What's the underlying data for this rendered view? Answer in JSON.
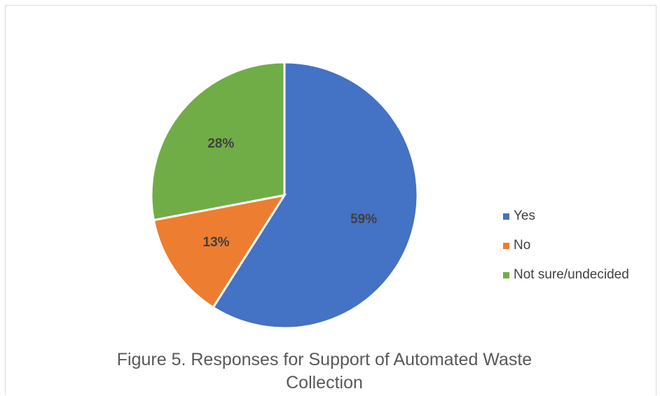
{
  "chart_data": {
    "type": "pie",
    "title": "Figure 5. Responses for Support of Automated Waste Collection",
    "categories": [
      "Yes",
      "No",
      "Not sure/undecided"
    ],
    "values": [
      59,
      13,
      28
    ],
    "labels": [
      "59%",
      "13%",
      "28%"
    ],
    "colors": [
      "#4472C4",
      "#ED7D31",
      "#70AD47"
    ],
    "legend_position": "right",
    "start_angle_deg": 0,
    "direction": "clockwise"
  }
}
